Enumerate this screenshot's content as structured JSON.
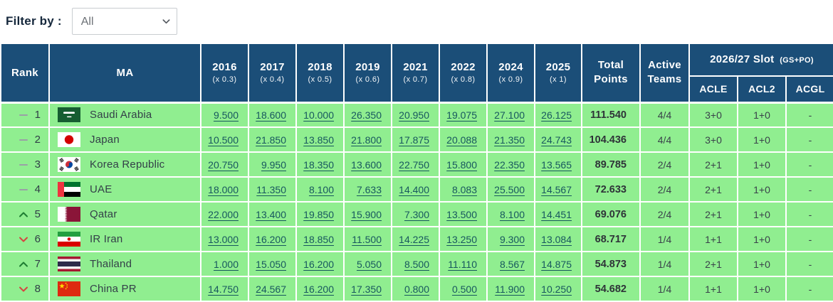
{
  "filter": {
    "label": "Filter by :",
    "selected": "All"
  },
  "colors": {
    "header_bg": "#1b4e78",
    "row_bg": "#90ee90",
    "link_color": "#17575e",
    "trend_up": "#1e7d32",
    "trend_down": "#d64541",
    "trend_same": "#9aa0a6"
  },
  "table": {
    "headers": {
      "rank": "Rank",
      "ma": "MA",
      "years": [
        {
          "year": "2016",
          "mult": "(x 0.3)"
        },
        {
          "year": "2017",
          "mult": "(x 0.4)"
        },
        {
          "year": "2018",
          "mult": "(x 0.5)"
        },
        {
          "year": "2019",
          "mult": "(x 0.6)"
        },
        {
          "year": "2021",
          "mult": "(x 0.7)"
        },
        {
          "year": "2022",
          "mult": "(x 0.8)"
        },
        {
          "year": "2024",
          "mult": "(x 0.9)"
        },
        {
          "year": "2025",
          "mult": "(x 1)"
        }
      ],
      "total": "Total Points",
      "active": "Active Teams",
      "slot": {
        "title": "2026/27 Slot",
        "subtitle": "(GS+PO)",
        "subcols": [
          "ACLE",
          "ACL2",
          "ACGL"
        ]
      }
    },
    "rows": [
      {
        "trend": "same",
        "rank": "1",
        "flag": "saudi-arabia",
        "country": "Saudi Arabia",
        "scores": [
          "9.500",
          "18.600",
          "10.000",
          "26.350",
          "20.950",
          "19.075",
          "27.100",
          "26.125"
        ],
        "total": "111.540",
        "active": "4/4",
        "acle": "3+0",
        "acl2": "1+0",
        "acgl": "-"
      },
      {
        "trend": "same",
        "rank": "2",
        "flag": "japan",
        "country": "Japan",
        "scores": [
          "10.500",
          "21.850",
          "13.850",
          "21.800",
          "17.875",
          "20.088",
          "21.350",
          "24.743"
        ],
        "total": "104.436",
        "active": "4/4",
        "acle": "3+0",
        "acl2": "1+0",
        "acgl": "-"
      },
      {
        "trend": "same",
        "rank": "3",
        "flag": "korea-republic",
        "country": "Korea Republic",
        "scores": [
          "20.750",
          "9.950",
          "18.350",
          "13.600",
          "22.750",
          "15.800",
          "22.350",
          "13.565"
        ],
        "total": "89.785",
        "active": "2/4",
        "acle": "2+1",
        "acl2": "1+0",
        "acgl": "-"
      },
      {
        "trend": "same",
        "rank": "4",
        "flag": "uae",
        "country": "UAE",
        "scores": [
          "18.000",
          "11.350",
          "8.100",
          "7.633",
          "14.400",
          "8.083",
          "25.500",
          "14.567"
        ],
        "total": "72.633",
        "active": "2/4",
        "acle": "2+1",
        "acl2": "1+0",
        "acgl": "-"
      },
      {
        "trend": "up",
        "rank": "5",
        "flag": "qatar",
        "country": "Qatar",
        "scores": [
          "22.000",
          "13.400",
          "19.850",
          "15.900",
          "7.300",
          "13.500",
          "8.100",
          "14.451"
        ],
        "total": "69.076",
        "active": "2/4",
        "acle": "2+1",
        "acl2": "1+0",
        "acgl": "-"
      },
      {
        "trend": "down",
        "rank": "6",
        "flag": "ir-iran",
        "country": "IR Iran",
        "scores": [
          "13.000",
          "16.200",
          "18.850",
          "11.500",
          "14.225",
          "13.250",
          "9.300",
          "13.084"
        ],
        "total": "68.717",
        "active": "1/4",
        "acle": "1+1",
        "acl2": "1+0",
        "acgl": "-"
      },
      {
        "trend": "up",
        "rank": "7",
        "flag": "thailand",
        "country": "Thailand",
        "scores": [
          "1.000",
          "15.050",
          "16.200",
          "5.050",
          "8.500",
          "11.110",
          "8.567",
          "14.875"
        ],
        "total": "54.873",
        "active": "1/4",
        "acle": "2+1",
        "acl2": "1+0",
        "acgl": "-"
      },
      {
        "trend": "down",
        "rank": "8",
        "flag": "china-pr",
        "country": "China PR",
        "scores": [
          "14.750",
          "24.567",
          "16.200",
          "17.350",
          "0.800",
          "0.500",
          "11.900",
          "10.250"
        ],
        "total": "54.682",
        "active": "1/4",
        "acle": "1+1",
        "acl2": "1+0",
        "acgl": "-"
      }
    ]
  }
}
